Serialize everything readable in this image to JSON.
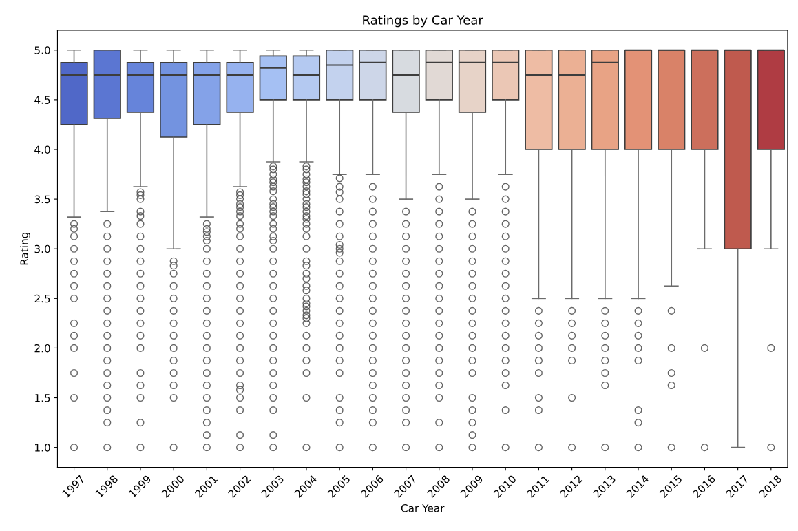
{
  "chart_data": {
    "type": "box",
    "title": "Ratings by Car Year",
    "xlabel": "Car Year",
    "ylabel": "Rating",
    "marker": "circle",
    "categories": [
      "1997",
      "1998",
      "1999",
      "2000",
      "2001",
      "2002",
      "2003",
      "2004",
      "2005",
      "2006",
      "2007",
      "2008",
      "2009",
      "2010",
      "2011",
      "2012",
      "2013",
      "2014",
      "2015",
      "2016",
      "2017",
      "2018"
    ],
    "colors": [
      "#5068c8",
      "#5b76d2",
      "#6684da",
      "#7393e0",
      "#84a2e8",
      "#96b2ef",
      "#a5c0f3",
      "#b4c9f1",
      "#c3d2ee",
      "#cdd6e8",
      "#d7dbe0",
      "#e1d9d5",
      "#e7d3c8",
      "#ebc7b5",
      "#eebca4",
      "#ebb094",
      "#e8a385",
      "#e39276",
      "#d98268",
      "#cc6f5c",
      "#bf5a4e",
      "#af3c43"
    ],
    "ylim": [
      0.8,
      5.2
    ],
    "yticks": [
      {
        "value": 1,
        "label": "1.0"
      },
      {
        "value": 1.5,
        "label": "1.5"
      },
      {
        "value": 2,
        "label": "2.0"
      },
      {
        "value": 2.5,
        "label": "2.5"
      },
      {
        "value": 3,
        "label": "3.0"
      },
      {
        "value": 3.5,
        "label": "3.5"
      },
      {
        "value": 4,
        "label": "4.0"
      },
      {
        "value": 4.5,
        "label": "4.5"
      },
      {
        "value": 5,
        "label": "5.0"
      }
    ],
    "boxes": [
      {
        "low": 3.32,
        "q1": 4.25,
        "median": 4.75,
        "q3": 4.875,
        "high": 5,
        "outliers": [
          3.25,
          3.2,
          3.125,
          3.0,
          2.875,
          2.75,
          2.625,
          2.5,
          2.25,
          2.125,
          2.0,
          1.75,
          1.5,
          1.0
        ]
      },
      {
        "low": 3.375,
        "q1": 4.3125,
        "median": 4.75,
        "q3": 5,
        "high": 5,
        "outliers": [
          3.25,
          3.125,
          3.0,
          2.875,
          2.75,
          2.625,
          2.5,
          2.375,
          2.25,
          2.125,
          2.0,
          1.875,
          1.75,
          1.625,
          1.5,
          1.375,
          1.25,
          1.0
        ]
      },
      {
        "low": 3.625,
        "q1": 4.375,
        "median": 4.75,
        "q3": 4.875,
        "high": 5,
        "outliers": [
          3.57,
          3.54,
          3.5,
          3.375,
          3.33,
          3.25,
          3.125,
          3.0,
          2.875,
          2.75,
          2.625,
          2.5,
          2.375,
          2.25,
          2.125,
          2.0,
          1.75,
          1.625,
          1.5,
          1.25,
          1.0
        ]
      },
      {
        "low": 3.0,
        "q1": 4.125,
        "median": 4.75,
        "q3": 4.875,
        "high": 5,
        "outliers": [
          2.875,
          2.83,
          2.75,
          2.625,
          2.5,
          2.375,
          2.25,
          2.125,
          2.0,
          1.875,
          1.75,
          1.625,
          1.5,
          1.0
        ]
      },
      {
        "low": 3.32,
        "q1": 4.25,
        "median": 4.75,
        "q3": 4.875,
        "high": 5,
        "outliers": [
          3.25,
          3.2,
          3.17,
          3.125,
          3.08,
          3.0,
          2.875,
          2.75,
          2.625,
          2.5,
          2.375,
          2.25,
          2.125,
          2.0,
          1.875,
          1.75,
          1.625,
          1.5,
          1.375,
          1.25,
          1.125,
          1.0
        ]
      },
      {
        "low": 3.625,
        "q1": 4.375,
        "median": 4.75,
        "q3": 4.875,
        "high": 5,
        "outliers": [
          3.57,
          3.54,
          3.5,
          3.45,
          3.42,
          3.375,
          3.33,
          3.25,
          3.2,
          3.125,
          3.0,
          2.875,
          2.75,
          2.625,
          2.5,
          2.375,
          2.25,
          2.125,
          2.0,
          1.875,
          1.75,
          1.625,
          1.58,
          1.5,
          1.375,
          1.125,
          1.0
        ]
      },
      {
        "low": 3.875,
        "q1": 4.5,
        "median": 4.82,
        "q3": 4.94,
        "high": 5,
        "outliers": [
          3.83,
          3.8,
          3.75,
          3.7,
          3.67,
          3.625,
          3.58,
          3.5,
          3.45,
          3.42,
          3.375,
          3.33,
          3.25,
          3.2,
          3.125,
          3.08,
          3.0,
          2.875,
          2.75,
          2.625,
          2.5,
          2.375,
          2.25,
          2.125,
          2.0,
          1.875,
          1.75,
          1.625,
          1.5,
          1.375,
          1.125,
          1.0
        ]
      },
      {
        "low": 3.875,
        "q1": 4.5,
        "median": 4.75,
        "q3": 4.94,
        "high": 5,
        "outliers": [
          3.83,
          3.8,
          3.75,
          3.7,
          3.67,
          3.625,
          3.58,
          3.55,
          3.5,
          3.45,
          3.42,
          3.375,
          3.33,
          3.3,
          3.25,
          3.2,
          3.125,
          3.0,
          2.875,
          2.83,
          2.75,
          2.7,
          2.625,
          2.58,
          2.5,
          2.45,
          2.42,
          2.375,
          2.33,
          2.3,
          2.25,
          2.125,
          2.0,
          1.875,
          1.75,
          1.5,
          1.0
        ]
      },
      {
        "low": 3.75,
        "q1": 4.5,
        "median": 4.85,
        "q3": 5,
        "high": 5,
        "outliers": [
          3.71,
          3.625,
          3.57,
          3.5,
          3.375,
          3.25,
          3.125,
          3.04,
          3.0,
          2.96,
          2.875,
          2.75,
          2.625,
          2.5,
          2.375,
          2.25,
          2.125,
          2.0,
          1.875,
          1.75,
          1.5,
          1.375,
          1.25,
          1.0
        ]
      },
      {
        "low": 3.75,
        "q1": 4.5,
        "median": 4.875,
        "q3": 5,
        "high": 5,
        "outliers": [
          3.625,
          3.5,
          3.375,
          3.25,
          3.125,
          3.0,
          2.875,
          2.75,
          2.625,
          2.5,
          2.375,
          2.25,
          2.125,
          2.0,
          1.875,
          1.75,
          1.625,
          1.5,
          1.375,
          1.25,
          1.0
        ]
      },
      {
        "low": 3.5,
        "q1": 4.375,
        "median": 4.75,
        "q3": 5,
        "high": 5,
        "outliers": [
          3.375,
          3.25,
          3.125,
          3.0,
          2.875,
          2.75,
          2.625,
          2.5,
          2.375,
          2.25,
          2.125,
          2.0,
          1.875,
          1.75,
          1.625,
          1.5,
          1.375,
          1.25,
          1.0
        ]
      },
      {
        "low": 3.75,
        "q1": 4.5,
        "median": 4.875,
        "q3": 5,
        "high": 5,
        "outliers": [
          3.625,
          3.5,
          3.375,
          3.25,
          3.125,
          3.0,
          2.875,
          2.75,
          2.625,
          2.5,
          2.375,
          2.25,
          2.125,
          2.0,
          1.875,
          1.75,
          1.625,
          1.5,
          1.25,
          1.0
        ]
      },
      {
        "low": 3.5,
        "q1": 4.375,
        "median": 4.875,
        "q3": 5,
        "high": 5,
        "outliers": [
          3.375,
          3.25,
          3.125,
          3.0,
          2.875,
          2.75,
          2.625,
          2.5,
          2.375,
          2.25,
          2.125,
          2.0,
          1.875,
          1.75,
          1.5,
          1.375,
          1.25,
          1.125,
          1.0
        ]
      },
      {
        "low": 3.75,
        "q1": 4.5,
        "median": 4.875,
        "q3": 5,
        "high": 5,
        "outliers": [
          3.625,
          3.5,
          3.375,
          3.25,
          3.125,
          3.0,
          2.875,
          2.75,
          2.625,
          2.5,
          2.375,
          2.25,
          2.125,
          2.0,
          1.875,
          1.75,
          1.625,
          1.375,
          1.0
        ]
      },
      {
        "low": 2.5,
        "q1": 4.0,
        "median": 4.75,
        "q3": 5,
        "high": 5,
        "outliers": [
          2.375,
          2.25,
          2.125,
          2.0,
          1.875,
          1.75,
          1.5,
          1.375,
          1.0
        ]
      },
      {
        "low": 2.5,
        "q1": 4.0,
        "median": 4.75,
        "q3": 5,
        "high": 5,
        "outliers": [
          2.375,
          2.25,
          2.125,
          2.0,
          1.875,
          1.5,
          1.0
        ]
      },
      {
        "low": 2.5,
        "q1": 4.0,
        "median": 4.875,
        "q3": 5,
        "high": 5,
        "outliers": [
          2.375,
          2.25,
          2.125,
          2.0,
          1.875,
          1.75,
          1.625,
          1.0
        ]
      },
      {
        "low": 2.5,
        "q1": 4.0,
        "median": 5,
        "q3": 5,
        "high": 5,
        "outliers": [
          2.375,
          2.25,
          2.125,
          2.0,
          1.875,
          1.375,
          1.25,
          1.0
        ]
      },
      {
        "low": 2.625,
        "q1": 4.0,
        "median": 5,
        "q3": 5,
        "high": 5,
        "outliers": [
          2.375,
          2.0,
          1.75,
          1.625,
          1.0
        ]
      },
      {
        "low": 3.0,
        "q1": 4.0,
        "median": 5,
        "q3": 5,
        "high": 5,
        "outliers": [
          2.0,
          1.0
        ]
      },
      {
        "low": 1.0,
        "q1": 3.0,
        "median": 5,
        "q3": 5,
        "high": 5
      },
      {
        "low": 3.0,
        "q1": 4.0,
        "median": 5,
        "q3": 5,
        "high": 5,
        "outliers": [
          2.0,
          1.0
        ]
      }
    ]
  }
}
